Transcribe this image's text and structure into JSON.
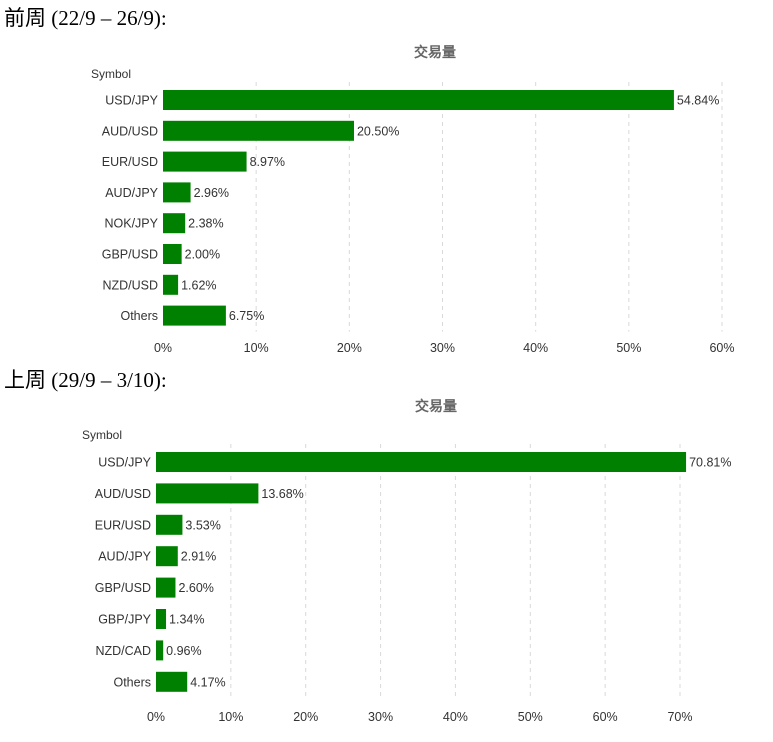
{
  "headings": [
    "前周 (22/9 – 26/9):",
    "上周 (29/9 – 3/10):"
  ],
  "colors": {
    "bar": "#008000"
  },
  "chart_data": [
    {
      "type": "bar",
      "orientation": "horizontal",
      "title": "交易量",
      "ylabel": "Symbol",
      "xlabel": "",
      "categories": [
        "USD/JPY",
        "AUD/USD",
        "EUR/USD",
        "AUD/JPY",
        "NOK/JPY",
        "GBP/USD",
        "NZD/USD",
        "Others"
      ],
      "values": [
        54.84,
        20.5,
        8.97,
        2.96,
        2.38,
        2.0,
        1.62,
        6.75
      ],
      "data_labels": [
        "54.84%",
        "20.50%",
        "8.97%",
        "2.96%",
        "2.38%",
        "2.00%",
        "1.62%",
        "6.75%"
      ],
      "xlim": [
        0,
        60
      ],
      "ticks": [
        0,
        10,
        20,
        30,
        40,
        50,
        60
      ],
      "tick_labels": [
        "0%",
        "10%",
        "20%",
        "30%",
        "40%",
        "50%",
        "60%"
      ],
      "grid": true
    },
    {
      "type": "bar",
      "orientation": "horizontal",
      "title": "交易量",
      "ylabel": "Symbol",
      "xlabel": "",
      "categories": [
        "USD/JPY",
        "AUD/USD",
        "EUR/USD",
        "AUD/JPY",
        "GBP/USD",
        "GBP/JPY",
        "NZD/CAD",
        "Others"
      ],
      "values": [
        70.81,
        13.68,
        3.53,
        2.91,
        2.6,
        1.34,
        0.96,
        4.17
      ],
      "data_labels": [
        "70.81%",
        "13.68%",
        "3.53%",
        "2.91%",
        "2.60%",
        "1.34%",
        "0.96%",
        "4.17%"
      ],
      "xlim": [
        0,
        70
      ],
      "ticks": [
        0,
        10,
        20,
        30,
        40,
        50,
        60,
        70
      ],
      "tick_labels": [
        "0%",
        "10%",
        "20%",
        "30%",
        "40%",
        "50%",
        "60%",
        "70%"
      ],
      "grid": true
    }
  ]
}
